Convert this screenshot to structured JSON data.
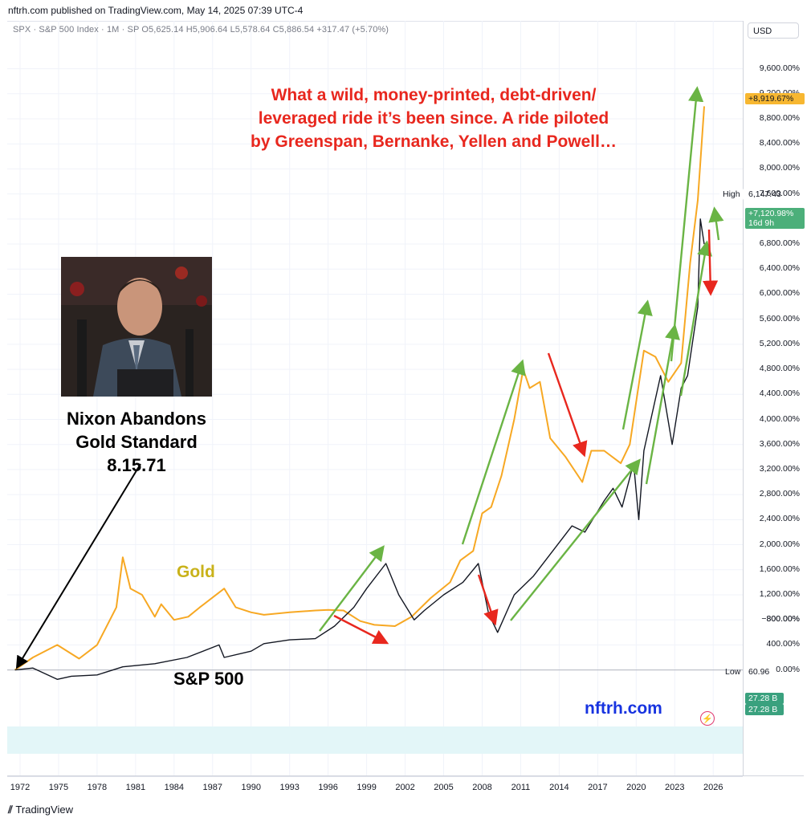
{
  "publisher": "nftrh.com published on TradingView.com, May 14, 2025 07:39 UTC-4",
  "symbol_line": "SPX · S&P 500 Index · 1M · SP  O5,625.14  H5,906.64  L5,578.64  C5,886.54  +317.47 (+5.70%)",
  "currency": "USD",
  "headline": [
    "What a wild, money-printed, debt-driven/",
    "leveraged ride it’s been since. A ride piloted",
    "by Greenspan, Bernanke, Yellen and Powell…"
  ],
  "nixon_caption": [
    "Nixon Abandons",
    "Gold Standard",
    "8.15.71"
  ],
  "gold_label": "Gold",
  "sp_label": "S&P 500",
  "watermark": "nftrh.com",
  "tv_logo": "TradingView",
  "badges": {
    "gold": "+8,919.67%",
    "high_label": "High",
    "high_value": "6,147.43",
    "sp_pct": "+7,120.98%",
    "sp_time": "16d 9h",
    "low_label": "Low",
    "low_value": "60.96",
    "vol1": "27.28 B",
    "vol2": "27.28 B"
  },
  "colors": {
    "gold": "#f7a823",
    "sp500": "#131722",
    "up_arrow": "#6ab444",
    "down_arrow": "#e8271e",
    "headline": "#e8271e",
    "watermark": "#1733e0"
  },
  "chart_data": {
    "type": "line",
    "x_ticks": [
      "1972",
      "1975",
      "1978",
      "1981",
      "1984",
      "1987",
      "1990",
      "1993",
      "1996",
      "1999",
      "2002",
      "2005",
      "2008",
      "2011",
      "2014",
      "2017",
      "2020",
      "2023",
      "2026"
    ],
    "y_ticks": [
      "9,600.00%",
      "9,200.00%",
      "8,800.00%",
      "8,400.00%",
      "8,000.00%",
      "7,600.00%",
      "7,200.00%",
      "6,800.00%",
      "6,400.00%",
      "6,000.00%",
      "5,600.00%",
      "5,200.00%",
      "4,800.00%",
      "4,400.00%",
      "4,000.00%",
      "3,600.00%",
      "3,200.00%",
      "2,800.00%",
      "2,400.00%",
      "2,000.00%",
      "1,600.00%",
      "1,200.00%",
      "800.00%",
      "400.00%",
      "0.00%",
      "−800.00%"
    ],
    "ylim": [
      -800,
      9800
    ],
    "xlim": [
      1971.0,
      2028.3
    ],
    "series": [
      {
        "name": "Gold",
        "x": [
          1971.6,
          1973.0,
          1974.9,
          1976.6,
          1978.0,
          1979.5,
          1980.0,
          1980.6,
          1981.5,
          1982.5,
          1983.0,
          1984.0,
          1985.1,
          1986.0,
          1987.9,
          1988.8,
          1990.0,
          1991.0,
          1993.0,
          1995.0,
          1996.0,
          1997.2,
          1998.5,
          1999.6,
          2001.2,
          2002.5,
          2004.0,
          2005.5,
          2006.3,
          2007.3,
          2008.0,
          2008.7,
          2009.5,
          2010.5,
          2011.2,
          2011.7,
          2012.5,
          2013.3,
          2014.5,
          2015.8,
          2016.5,
          2017.5,
          2018.8,
          2019.5,
          2020.6,
          2021.5,
          2022.5,
          2023.5,
          2024.2,
          2024.8,
          2025.3
        ],
        "values": [
          0,
          200,
          400,
          180,
          400,
          1000,
          1800,
          1300,
          1200,
          850,
          1050,
          800,
          850,
          1000,
          1300,
          1000,
          920,
          880,
          920,
          950,
          960,
          950,
          780,
          720,
          700,
          850,
          1150,
          1400,
          1750,
          1900,
          2500,
          2600,
          3100,
          4000,
          4800,
          4500,
          4600,
          3700,
          3400,
          3000,
          3500,
          3500,
          3300,
          3600,
          5100,
          5000,
          4600,
          4900,
          6500,
          7500,
          9000
        ]
      },
      {
        "name": "S&P 500",
        "x": [
          1971.6,
          1973.0,
          1974.9,
          1976.0,
          1978.0,
          1980.0,
          1982.5,
          1985.0,
          1987.5,
          1987.9,
          1990.0,
          1991.0,
          1993.0,
          1995.0,
          1996.5,
          1998.0,
          1999.0,
          2000.5,
          2001.5,
          2002.7,
          2003.5,
          2005.0,
          2006.5,
          2007.7,
          2008.5,
          2009.2,
          2010.5,
          2012.0,
          2013.5,
          2015.0,
          2016.0,
          2017.5,
          2018.2,
          2018.9,
          2019.8,
          2020.2,
          2020.6,
          2021.9,
          2022.8,
          2023.5,
          2024.0,
          2024.8,
          2025.0,
          2025.3
        ],
        "values": [
          0,
          30,
          -150,
          -100,
          -80,
          50,
          100,
          200,
          400,
          200,
          300,
          420,
          480,
          500,
          700,
          1000,
          1300,
          1700,
          1200,
          800,
          950,
          1200,
          1400,
          1700,
          900,
          600,
          1200,
          1500,
          1900,
          2300,
          2200,
          2700,
          2900,
          2600,
          3300,
          2400,
          3500,
          4700,
          3600,
          4500,
          4700,
          5800,
          7200,
          6800
        ]
      }
    ]
  }
}
